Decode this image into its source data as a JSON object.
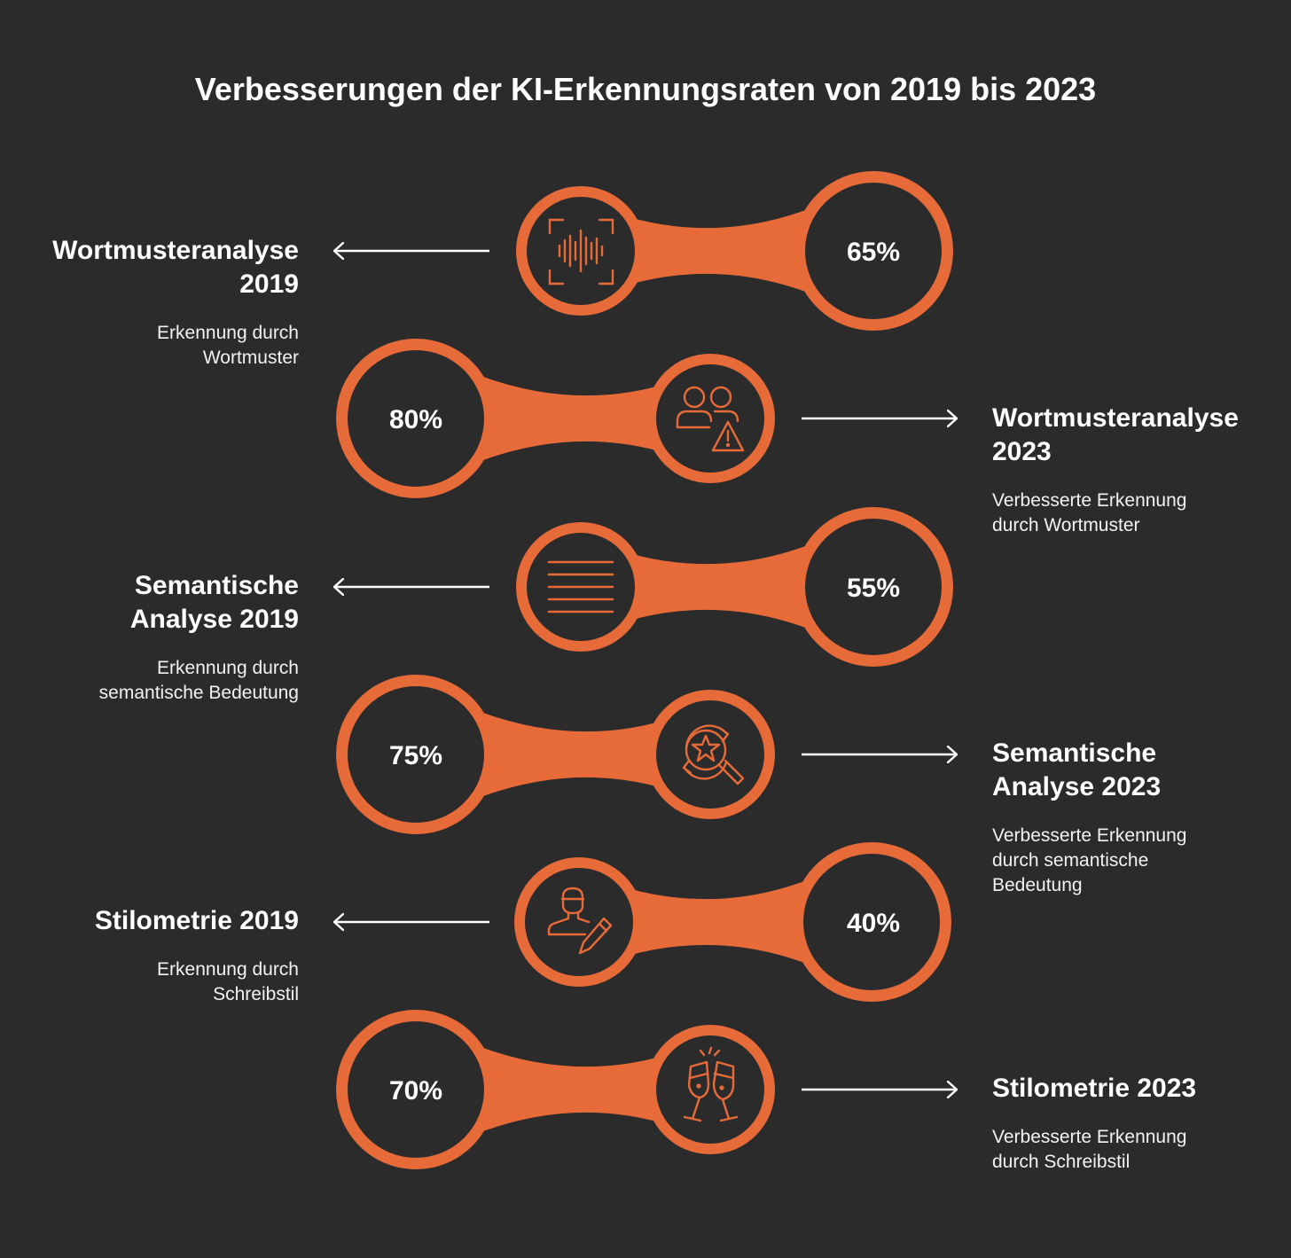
{
  "title": "Verbesserungen der KI-Erkennungsraten von 2019 bis 2023",
  "colors": {
    "background": "#2b2b2b",
    "accent": "#e76b39",
    "text": "#ffffff"
  },
  "stages": [
    {
      "name": "Wortmusteranalyse 2019",
      "title_lines": [
        "Wortmusteranalyse",
        "2019"
      ],
      "desc_lines": [
        "Erkennung durch",
        "Wortmuster"
      ],
      "value": "65%",
      "icon": "voice-waveform-icon"
    },
    {
      "name": "Wortmusteranalyse 2023",
      "title_lines": [
        "Wortmusteranalyse",
        "2023"
      ],
      "desc_lines": [
        "Verbesserte Erkennung",
        "durch Wortmuster"
      ],
      "value": "80%",
      "icon": "users-warning-icon"
    },
    {
      "name": "Semantische Analyse 2019",
      "title_lines": [
        "Semantische",
        "Analyse 2019"
      ],
      "desc_lines": [
        "Erkennung durch",
        "semantische Bedeutung"
      ],
      "value": "55%",
      "icon": "text-lines-icon"
    },
    {
      "name": "Semantische Analyse 2023",
      "title_lines": [
        "Semantische",
        "Analyse 2023"
      ],
      "desc_lines": [
        "Verbesserte Erkennung",
        "durch semantische",
        "Bedeutung"
      ],
      "value": "75%",
      "icon": "search-star-icon"
    },
    {
      "name": "Stilometrie 2019",
      "title_lines": [
        "Stilometrie 2019"
      ],
      "desc_lines": [
        "Erkennung durch",
        "Schreibstil"
      ],
      "value": "40%",
      "icon": "user-edit-icon"
    },
    {
      "name": "Stilometrie 2023",
      "title_lines": [
        "Stilometrie 2023"
      ],
      "desc_lines": [
        "Verbesserte Erkennung",
        "durch Schreibstil"
      ],
      "value": "70%",
      "icon": "toast-glasses-icon"
    }
  ]
}
